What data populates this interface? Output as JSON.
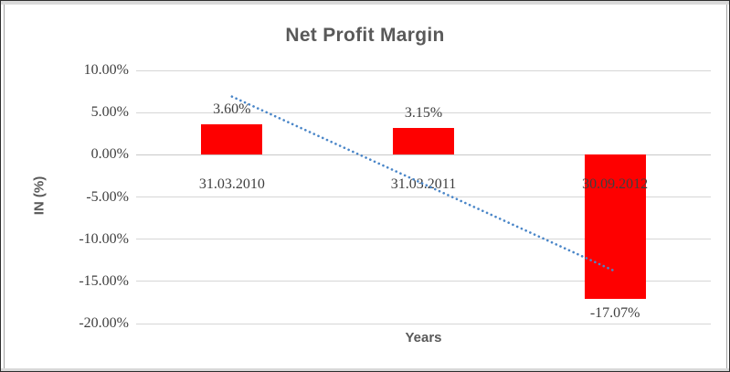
{
  "chart_data": {
    "type": "bar",
    "title": "Net Profit Margin",
    "xlabel": "Years",
    "ylabel": "IN (%)",
    "categories": [
      "31.03.2010",
      "31.03.2011",
      "30.09.2012"
    ],
    "values": [
      3.6,
      3.15,
      -17.07
    ],
    "data_labels": [
      "3.60%",
      "3.15%",
      "-17.07%"
    ],
    "yticks": [
      {
        "value": 10,
        "label": "10.00%"
      },
      {
        "value": 5,
        "label": "5.00%"
      },
      {
        "value": 0,
        "label": "0.00%"
      },
      {
        "value": -5,
        "label": "-5.00%"
      },
      {
        "value": -10,
        "label": "-10.00%"
      },
      {
        "value": -15,
        "label": "-15.00%"
      },
      {
        "value": -20,
        "label": "-20.00%"
      }
    ],
    "ylim": [
      -20,
      10
    ],
    "grid": true,
    "legend": "none",
    "bar_color": "#fe0000",
    "trendline": {
      "style": "dotted",
      "color": "#4a86c8",
      "start_category_index": 0,
      "end_category_index": 2,
      "start_value": 6.9,
      "end_value": -13.8
    }
  }
}
